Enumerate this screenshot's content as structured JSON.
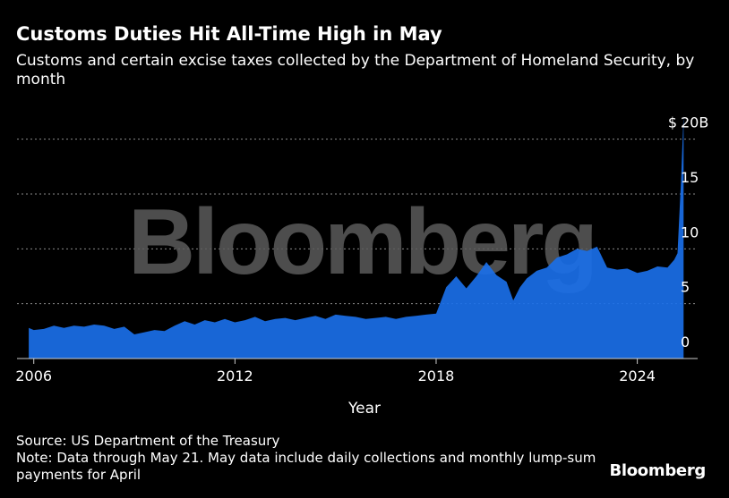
{
  "title": "Customs Duties Hit All-Time High in May",
  "subtitle": "Customs and certain excise taxes collected by the Department of Homeland Security, by month",
  "watermark": "Bloomberg",
  "footer": {
    "source": "Source: US Department of the Treasury",
    "note": "Note: Data through May 21. May data include daily collections and monthly lump-sum payments for April"
  },
  "brand": "Bloomberg",
  "colors": {
    "background": "#000000",
    "area": "#1a6fe8",
    "grid": "#8a8a8a",
    "text": "#ffffff",
    "watermark": "#5a5a5a"
  },
  "chart_data": {
    "type": "area",
    "xlabel": "Year",
    "ylabel": "",
    "y_unit_label": "$",
    "xlim": [
      2005.5,
      2025.8
    ],
    "ylim": [
      0,
      22.5
    ],
    "yticks": [
      {
        "value": 0,
        "label": "0"
      },
      {
        "value": 5,
        "label": "5"
      },
      {
        "value": 10,
        "label": "10"
      },
      {
        "value": 15,
        "label": "15"
      },
      {
        "value": 20,
        "label": "20B"
      }
    ],
    "xticks": [
      {
        "value": 2006,
        "label": "2006"
      },
      {
        "value": 2012,
        "label": "2012"
      },
      {
        "value": 2018,
        "label": "2018"
      },
      {
        "value": 2024,
        "label": "2024"
      }
    ],
    "grid": "horizontal dashed",
    "series": [
      {
        "x": [
          2005.85,
          2006.0,
          2006.3,
          2006.6,
          2006.9,
          2007.2,
          2007.5,
          2007.8,
          2008.1,
          2008.4,
          2008.7,
          2009.0,
          2009.3,
          2009.6,
          2009.9,
          2010.2,
          2010.5,
          2010.8,
          2011.1,
          2011.4,
          2011.7,
          2012.0,
          2012.3,
          2012.6,
          2012.9,
          2013.2,
          2013.5,
          2013.8,
          2014.1,
          2014.4,
          2014.7,
          2015.0,
          2015.3,
          2015.6,
          2015.9,
          2016.2,
          2016.5,
          2016.8,
          2017.1,
          2017.4,
          2017.7,
          2018.0,
          2018.3,
          2018.6,
          2018.9,
          2019.2,
          2019.5,
          2019.8,
          2020.1,
          2020.3,
          2020.5,
          2020.7,
          2021.0,
          2021.3,
          2021.6,
          2021.9,
          2022.2,
          2022.5,
          2022.8,
          2023.1,
          2023.4,
          2023.7,
          2024.0,
          2024.3,
          2024.6,
          2024.9,
          2025.1,
          2025.2,
          2025.3,
          2025.38
        ],
        "y": [
          2.8,
          2.6,
          2.7,
          3.0,
          2.8,
          3.0,
          2.9,
          3.1,
          3.0,
          2.7,
          2.9,
          2.2,
          2.4,
          2.6,
          2.5,
          3.0,
          3.4,
          3.1,
          3.5,
          3.3,
          3.6,
          3.3,
          3.5,
          3.8,
          3.4,
          3.6,
          3.7,
          3.5,
          3.7,
          3.9,
          3.6,
          4.0,
          3.9,
          3.8,
          3.6,
          3.7,
          3.8,
          3.6,
          3.8,
          3.9,
          4.0,
          4.1,
          6.5,
          7.5,
          6.4,
          7.5,
          8.8,
          7.6,
          7.0,
          5.3,
          6.5,
          7.3,
          8.0,
          8.3,
          9.2,
          9.5,
          10.0,
          9.8,
          10.2,
          8.3,
          8.1,
          8.2,
          7.8,
          8.0,
          8.4,
          8.3,
          9.0,
          9.6,
          16.0,
          22.2
        ]
      }
    ]
  }
}
